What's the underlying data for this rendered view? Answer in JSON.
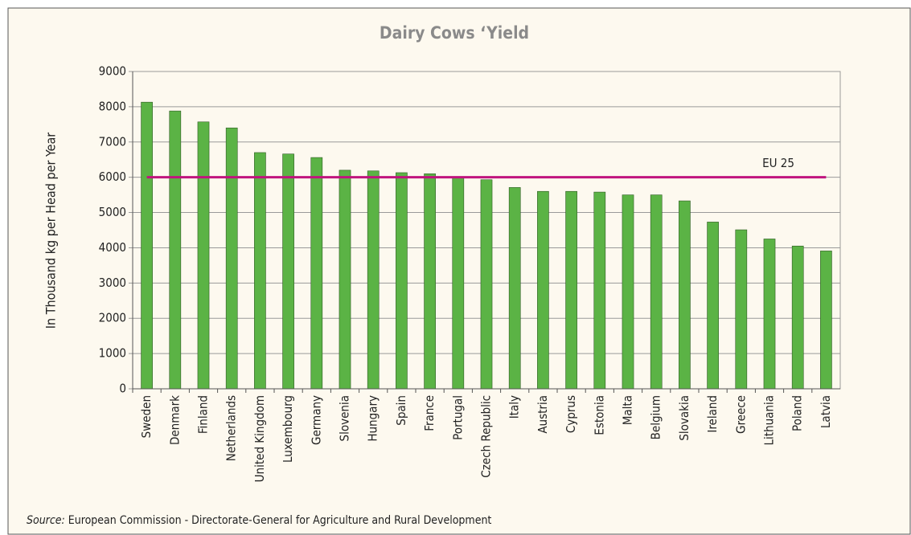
{
  "chart_data": {
    "type": "bar",
    "title": "Dairy Cows ‘Yield",
    "y_label": "In Thousand kg per Head per Year",
    "categories": [
      "Sweden",
      "Denmark",
      "Finland",
      "Netherlands",
      "United Kingdom",
      "Luxembourg",
      "Germany",
      "Slovenia",
      "Hungary",
      "Spain",
      "France",
      "Portugal",
      "Czech Republic",
      "Italy",
      "Austria",
      "Cyprus",
      "Estonia",
      "Malta",
      "Belgium",
      "Slovakia",
      "Ireland",
      "Greece",
      "Lithuania",
      "Poland",
      "Latvia"
    ],
    "values": [
      8130,
      7880,
      7570,
      7400,
      6700,
      6660,
      6560,
      6200,
      6180,
      6130,
      6100,
      5990,
      5930,
      5710,
      5600,
      5600,
      5580,
      5500,
      5500,
      5330,
      4730,
      4510,
      4250,
      4050,
      3910
    ],
    "color": "#5bb345",
    "ylim": [
      0,
      9000
    ],
    "yticks": [
      0,
      1000,
      2000,
      3000,
      4000,
      5000,
      6000,
      7000,
      8000,
      9000
    ],
    "grid": true,
    "reference_line": {
      "label": "EU 25",
      "value": 6000,
      "color": "#c0147e"
    },
    "source_label": "Source:",
    "source_text": "European Commission - Directorate-General for Agriculture and Rural Development"
  }
}
